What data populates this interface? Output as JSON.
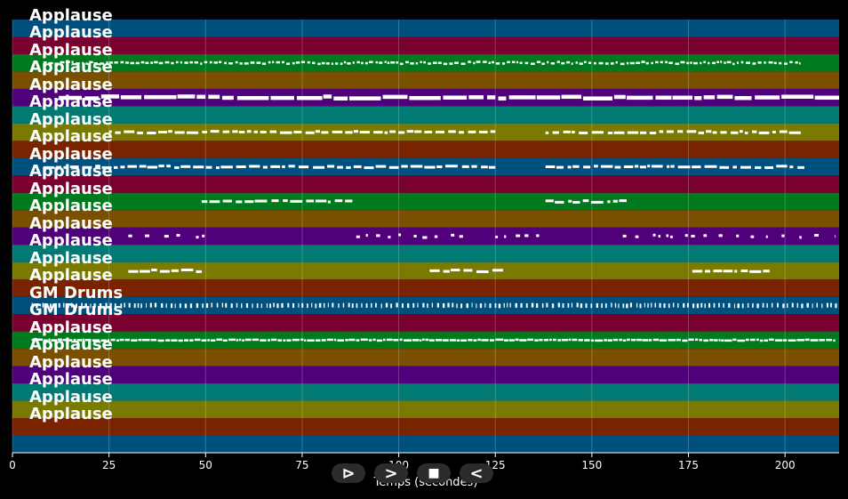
{
  "window": {
    "background": "#000000"
  },
  "tracks": [
    {
      "name": "Applause",
      "color": "#00507e",
      "notes": []
    },
    {
      "name": "Applause",
      "color": "#7a0030",
      "notes": []
    },
    {
      "name": "Applause",
      "color": "#007a1e",
      "notes": [
        [
          8,
          204,
          "dense-small"
        ]
      ]
    },
    {
      "name": "Applause",
      "color": "#7a5000",
      "notes": []
    },
    {
      "name": "Applause",
      "color": "#50007a",
      "notes": [
        [
          12,
          214,
          "thick"
        ]
      ]
    },
    {
      "name": "Applause",
      "color": "#007a72",
      "notes": []
    },
    {
      "name": "Applause",
      "color": "#7a7a00",
      "notes": [
        [
          25,
          125,
          "medium"
        ],
        [
          138,
          205,
          "medium"
        ]
      ]
    },
    {
      "name": "Applause",
      "color": "#7a2300",
      "notes": []
    },
    {
      "name": "Applause",
      "color": "#00507e",
      "notes": [
        [
          8,
          125,
          "medium"
        ],
        [
          138,
          205,
          "medium"
        ]
      ]
    },
    {
      "name": "Applause",
      "color": "#7a0030",
      "notes": []
    },
    {
      "name": "Applause",
      "color": "#007a1e",
      "notes": [
        [
          49,
          88,
          "medium"
        ],
        [
          138,
          159,
          "medium"
        ]
      ]
    },
    {
      "name": "Applause",
      "color": "#7a5000",
      "notes": []
    },
    {
      "name": "Applause",
      "color": "#50007a",
      "notes": [
        [
          30,
          50,
          "sparse"
        ],
        [
          89,
          118,
          "sparse"
        ],
        [
          125,
          137,
          "sparse"
        ],
        [
          158,
          213,
          "sparse"
        ]
      ]
    },
    {
      "name": "Applause",
      "color": "#007a72",
      "notes": []
    },
    {
      "name": "Applause",
      "color": "#7a7a00",
      "notes": [
        [
          30,
          49,
          "medium"
        ],
        [
          108,
          127,
          "medium"
        ],
        [
          176,
          196,
          "medium"
        ]
      ]
    },
    {
      "name": "Applause",
      "color": "#7a2300",
      "notes": []
    },
    {
      "name": "GM Drums",
      "color": "#00507e",
      "notes": [
        [
          5,
          214,
          "ticks"
        ]
      ]
    },
    {
      "name": "GM Drums",
      "color": "#7a0030",
      "notes": []
    },
    {
      "name": "Applause",
      "color": "#007a1e",
      "notes": [
        [
          5,
          213,
          "dense-thin"
        ]
      ]
    },
    {
      "name": "Applause",
      "color": "#7a5000",
      "notes": []
    },
    {
      "name": "Applause",
      "color": "#50007a",
      "notes": []
    },
    {
      "name": "Applause",
      "color": "#007a72",
      "notes": []
    },
    {
      "name": "Applause",
      "color": "#7a7a00",
      "notes": []
    },
    {
      "name": "Applause",
      "color": "#7a2300",
      "notes": []
    },
    {
      "name": "",
      "color": "#00507e",
      "notes": []
    }
  ],
  "xaxis": {
    "label": "Temps (secondes)",
    "min": 0,
    "max": 214,
    "ticks": [
      0,
      25,
      50,
      75,
      100,
      125,
      150,
      175,
      200
    ]
  },
  "controls": {
    "play_label": "⊳",
    "forward_label": ">",
    "stop_label": "■",
    "back_label": "<"
  }
}
